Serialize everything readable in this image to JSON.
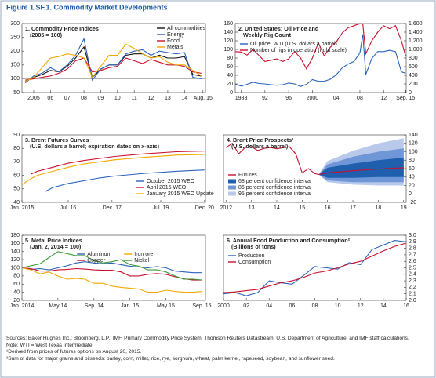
{
  "title": "Figure 1.SF.1.  Commodity Market Developments",
  "notes": [
    "Sources: Baker Hughes Inc.; Bloomberg, L.P.; IMF, Primary Commodity Price System; Thomson Reuters Datastream; U.S. Department of Agriculture; and IMF staff calculations.",
    "Note: WTI = West Texas Intermediate.",
    "¹Derived from prices of futures options on August 20, 2015.",
    "²Sum of data for major grains and oilseeds: barley, corn, millet, rice, rye, sorghum, wheat, palm kernel, rapeseed, soybean, and sunflower seed."
  ],
  "chart_data": [
    {
      "type": "line",
      "title": "1. Commodity Price Indices",
      "subtitle": "(2005 = 100)",
      "x": [
        2005,
        2005.5,
        2006,
        2006.5,
        2007,
        2007.5,
        2008,
        2008.5,
        2009,
        2009.5,
        2010,
        2010.5,
        2011,
        2011.5,
        2012,
        2012.5,
        2013,
        2013.5,
        2014,
        2014.5,
        2015,
        2015.5
      ],
      "series": [
        {
          "name": "All commodities",
          "color": "#111111",
          "values": [
            90,
            105,
            115,
            130,
            125,
            145,
            175,
            215,
            105,
            135,
            150,
            150,
            185,
            190,
            190,
            175,
            185,
            175,
            175,
            180,
            115,
            110
          ]
        },
        {
          "name": "Energy",
          "color": "#2a62b8",
          "values": [
            85,
            110,
            120,
            140,
            125,
            150,
            185,
            245,
            95,
            135,
            150,
            150,
            190,
            200,
            205,
            185,
            200,
            195,
            190,
            195,
            105,
            100
          ]
        },
        {
          "name": "Food",
          "color": "#c8102e",
          "values": [
            95,
            100,
            105,
            110,
            120,
            135,
            165,
            175,
            125,
            130,
            140,
            145,
            175,
            165,
            155,
            170,
            160,
            150,
            150,
            145,
            125,
            120
          ]
        },
        {
          "name": "Metals",
          "color": "#f2a900",
          "values": [
            90,
            105,
            140,
            175,
            180,
            190,
            185,
            175,
            105,
            145,
            185,
            185,
            225,
            210,
            190,
            175,
            180,
            160,
            150,
            150,
            130,
            110
          ]
        }
      ],
      "xlim": [
        2004.8,
        2015.75
      ],
      "xticks": [
        {
          "value": 2005.5,
          "label": "2005"
        },
        {
          "value": 2006.5,
          "label": "06"
        },
        {
          "value": 2007.5,
          "label": "07"
        },
        {
          "value": 2008.5,
          "label": "08"
        },
        {
          "value": 2009.5,
          "label": "09"
        },
        {
          "value": 2010.5,
          "label": "10"
        },
        {
          "value": 2011.5,
          "label": "11"
        },
        {
          "value": 2012.5,
          "label": "12"
        },
        {
          "value": 2013.5,
          "label": "13"
        },
        {
          "value": 2014.5,
          "label": "14"
        },
        {
          "value": 2015.6,
          "label": "Aug. 15"
        }
      ],
      "ylim": [
        50,
        300
      ],
      "yticks": [
        50,
        100,
        150,
        200,
        250,
        300
      ],
      "y_axis_side": "left",
      "hline": 100,
      "legend": "upper right"
    },
    {
      "type": "line",
      "title": "2. United States: Oil Price and",
      "subtitle": "Weekly Rig Count",
      "x": [
        1987,
        1988,
        1989,
        1990,
        1991,
        1992,
        1993,
        1994,
        1995,
        1996,
        1997,
        1998,
        1999,
        2000,
        2001,
        2002,
        2003,
        2004,
        2005,
        2006,
        2007,
        2008,
        2008.5,
        2009,
        2010,
        2011,
        2012,
        2013,
        2014,
        2015,
        2015.7
      ],
      "series": [
        {
          "name": "Oil price, WTI (U.S. dollars a barrel)",
          "color": "#2a62b8",
          "values": [
            19,
            15,
            19,
            24,
            21,
            20,
            18,
            17,
            18,
            22,
            20,
            14,
            19,
            30,
            26,
            26,
            31,
            41,
            57,
            66,
            72,
            92,
            135,
            42,
            79,
            95,
            95,
            98,
            95,
            48,
            45
          ]
        },
        {
          "name": "Number of rigs in operation (right scale)",
          "color": "#c8102e",
          "axis": "y2",
          "values": [
            950,
            940,
            870,
            1000,
            860,
            720,
            750,
            780,
            720,
            780,
            950,
            800,
            550,
            800,
            1150,
            850,
            1050,
            1170,
            1380,
            1500,
            1550,
            1600,
            1580,
            900,
            1200,
            1400,
            1550,
            1480,
            1550,
            1200,
            850
          ]
        }
      ],
      "xlim": [
        1987,
        2015.8
      ],
      "xticks": [
        1988,
        {
          "value": 1992,
          "label": "92"
        },
        {
          "value": 1996,
          "label": "96"
        },
        2000,
        {
          "value": 2004,
          "label": "04"
        },
        {
          "value": 2008,
          "label": "08"
        },
        {
          "value": 2012,
          "label": "12"
        },
        {
          "value": 2015.7,
          "label": "Sep. 15"
        }
      ],
      "ylim": [
        0,
        160
      ],
      "yticks": [
        0,
        20,
        40,
        60,
        80,
        100,
        120,
        140,
        160
      ],
      "y_axis_side": "left",
      "y2lim": [
        0,
        1600
      ],
      "y2ticks": [
        0,
        200,
        400,
        600,
        800,
        {
          "value": 1000,
          "label": "1,000"
        },
        {
          "value": 1200,
          "label": "1,200"
        },
        {
          "value": 1400,
          "label": "1,400"
        },
        {
          "value": 1600,
          "label": "1,600"
        }
      ],
      "legend": "upper left"
    },
    {
      "type": "line",
      "title": "3. Brent Futures Curves",
      "subtitle": "(U.S. dollars a barrel; expiration dates on x-axis)",
      "series": [
        {
          "name": "October 2015 WEO",
          "color": "#2a62b8",
          "x": [
            2015.75,
            2016,
            2016.5,
            2017,
            2017.5,
            2018,
            2019,
            2020,
            2020.92
          ],
          "values": [
            48,
            51,
            54,
            56,
            58,
            59.5,
            61.5,
            63,
            64
          ]
        },
        {
          "name": "April 2015 WEO",
          "color": "#c8102e",
          "x": [
            2015.3,
            2015.5,
            2016,
            2016.5,
            2017,
            2018,
            2019,
            2020,
            2020.92
          ],
          "values": [
            61,
            63,
            66,
            69,
            71,
            74,
            76,
            77.5,
            78
          ]
        },
        {
          "name": "January 2015 WEO Update",
          "color": "#f2a900",
          "x": [
            2015,
            2015.25,
            2015.5,
            2016,
            2016.5,
            2017,
            2018,
            2019,
            2020,
            2020.92
          ],
          "values": [
            53,
            57,
            60,
            63,
            66,
            68.5,
            71.5,
            73.5,
            75,
            75.5
          ]
        }
      ],
      "xlim": [
        2015,
        2020.95
      ],
      "xticks": [
        {
          "value": 2015,
          "label": "Jan. 2015"
        },
        {
          "value": 2016.5,
          "label": "Jul. 16"
        },
        {
          "value": 2017.92,
          "label": "Dec. 17"
        },
        {
          "value": 2019.5,
          "label": "Jul. 19"
        },
        {
          "value": 2020.92,
          "label": "Dec. 20"
        }
      ],
      "ylim": [
        40,
        90
      ],
      "yticks": [
        40,
        50,
        60,
        70,
        80,
        90
      ],
      "y_axis_side": "left",
      "legend": "lower right"
    },
    {
      "type": "line",
      "title": "4. Brent Price Prospects¹",
      "subtitle": "(U.S. dollars a barrel)",
      "series": [
        {
          "name": "Futures",
          "color": "#c8102e",
          "x": [
            2012,
            2012.25,
            2012.5,
            2012.75,
            2013,
            2013.25,
            2013.5,
            2013.75,
            2014,
            2014.5,
            2014.75,
            2015,
            2015.25,
            2015.5,
            2015.65,
            2016,
            2017,
            2018,
            2019
          ],
          "values": [
            110,
            120,
            95,
            110,
            112,
            103,
            108,
            110,
            107,
            112,
            95,
            50,
            60,
            48,
            46,
            50,
            55,
            59,
            62
          ]
        }
      ],
      "bands": [
        {
          "name": "68 percent confidence interval",
          "color": "#1f5fae",
          "x": [
            2015.65,
            2016,
            2017,
            2018,
            2019
          ],
          "lower": [
            46,
            38,
            38,
            40,
            40
          ],
          "upper": [
            46,
            62,
            72,
            80,
            86
          ]
        },
        {
          "name": "86 percent confidence interval",
          "color": "#6f96d6",
          "x": [
            2015.65,
            2016,
            2017,
            2018,
            2019
          ],
          "lower": [
            46,
            32,
            28,
            28,
            28
          ],
          "upper": [
            46,
            70,
            88,
            100,
            108
          ]
        },
        {
          "name": "95 percent confidence interval",
          "color": "#b9c9ec",
          "x": [
            2015.65,
            2016,
            2017,
            2018,
            2019
          ],
          "lower": [
            46,
            28,
            22,
            20,
            20
          ],
          "upper": [
            46,
            78,
            102,
            120,
            132
          ]
        }
      ],
      "xlim": [
        2011.9,
        2019.1
      ],
      "xticks": [
        2012,
        {
          "value": 2013,
          "label": "13"
        },
        {
          "value": 2014,
          "label": "14"
        },
        {
          "value": 2015,
          "label": "15"
        },
        {
          "value": 2016,
          "label": "16"
        },
        {
          "value": 2017,
          "label": "17"
        },
        {
          "value": 2018,
          "label": "18"
        },
        {
          "value": 2019,
          "label": "19"
        }
      ],
      "ylim": [
        -20,
        140
      ],
      "yticks": [
        -20,
        0,
        20,
        40,
        60,
        80,
        100,
        120,
        140
      ],
      "y_axis_side": "right",
      "legend": "lower left"
    },
    {
      "type": "line",
      "title": "5. Metal Price Indices",
      "subtitle": "(Jan. 2, 2014 = 100)",
      "x": [
        2014,
        2014.083,
        2014.167,
        2014.25,
        2014.333,
        2014.417,
        2014.5,
        2014.583,
        2014.667,
        2014.75,
        2014.833,
        2014.917,
        2015,
        2015.083,
        2015.167,
        2015.25,
        2015.333,
        2015.417,
        2015.5,
        2015.583,
        2015.667
      ],
      "series": [
        {
          "name": "Aluminum",
          "color": "#2a62b8",
          "values": [
            100,
            96,
            98,
            95,
            100,
            105,
            112,
            115,
            112,
            110,
            112,
            108,
            104,
            102,
            100,
            103,
            100,
            92,
            90,
            88,
            88
          ]
        },
        {
          "name": "Copper",
          "color": "#c8102e",
          "values": [
            100,
            98,
            92,
            92,
            95,
            96,
            98,
            97,
            95,
            94,
            94,
            90,
            80,
            80,
            84,
            86,
            84,
            78,
            73,
            70,
            70
          ]
        },
        {
          "name": "Iron ore",
          "color": "#f2a900",
          "values": [
            100,
            95,
            85,
            90,
            80,
            72,
            74,
            72,
            62,
            62,
            55,
            52,
            50,
            48,
            40,
            40,
            45,
            42,
            40,
            40,
            42
          ]
        },
        {
          "name": "Nickel",
          "color": "#3a9a3a",
          "values": [
            100,
            105,
            110,
            125,
            140,
            135,
            130,
            130,
            118,
            112,
            115,
            120,
            108,
            104,
            95,
            95,
            90,
            80,
            72,
            72,
            70
          ]
        }
      ],
      "xlim": [
        2014,
        2015.7
      ],
      "xticks": [
        {
          "value": 2014,
          "label": "Jan. 2014"
        },
        {
          "value": 2014.333,
          "label": "May 14"
        },
        {
          "value": 2014.667,
          "label": "Sep. 14"
        },
        {
          "value": 2015,
          "label": "Jan. 15"
        },
        {
          "value": 2015.333,
          "label": "May 15"
        },
        {
          "value": 2015.667,
          "label": "Sep. 15"
        }
      ],
      "ylim": [
        20,
        180
      ],
      "yticks": [
        20,
        40,
        60,
        80,
        100,
        120,
        140,
        160,
        180
      ],
      "y_axis_side": "left",
      "legend": "upper center",
      "legend_columns": 2
    },
    {
      "type": "line",
      "title": "6. Annual Food Production and Consumption²",
      "subtitle": "(Billions of tons)",
      "x": [
        2000,
        2001,
        2002,
        2003,
        2004,
        2005,
        2006,
        2007,
        2008,
        2009,
        2010,
        2011,
        2012,
        2013,
        2014,
        2015,
        2016
      ],
      "series": [
        {
          "name": "Production",
          "color": "#2a62b8",
          "values": [
            2.1,
            2.12,
            2.07,
            2.12,
            2.3,
            2.27,
            2.25,
            2.38,
            2.52,
            2.5,
            2.48,
            2.58,
            2.55,
            2.78,
            2.85,
            2.92,
            2.9
          ]
        },
        {
          "name": "Consumption",
          "color": "#c8102e",
          "values": [
            2.12,
            2.13,
            2.15,
            2.17,
            2.22,
            2.27,
            2.3,
            2.35,
            2.42,
            2.45,
            2.5,
            2.56,
            2.6,
            2.68,
            2.76,
            2.83,
            2.88
          ]
        }
      ],
      "xlim": [
        2000,
        2016
      ],
      "xticks": [
        2000,
        {
          "value": 2002,
          "label": "02"
        },
        {
          "value": 2004,
          "label": "04"
        },
        {
          "value": 2006,
          "label": "06"
        },
        {
          "value": 2008,
          "label": "08"
        },
        {
          "value": 2010,
          "label": "10"
        },
        {
          "value": 2012,
          "label": "12"
        },
        {
          "value": 2014,
          "label": "14"
        },
        {
          "value": 2016,
          "label": "16"
        }
      ],
      "ylim": [
        2,
        3
      ],
      "yticks": [
        {
          "value": 2,
          "label": "2.0"
        },
        2.1,
        2.2,
        2.3,
        2.4,
        2.5,
        2.6,
        2.7,
        2.8,
        2.9,
        {
          "value": 3,
          "label": "3.0"
        }
      ],
      "y_axis_side": "right",
      "legend": "upper left"
    }
  ]
}
